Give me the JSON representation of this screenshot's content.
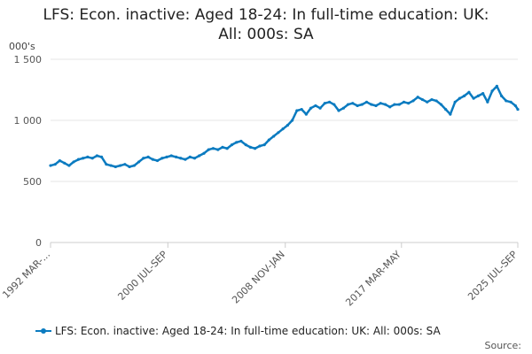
{
  "chart_data": {
    "type": "line",
    "title_lines": [
      "LFS: Econ. inactive: Aged 18-24: In full-time education: UK:",
      "All: 000s: SA"
    ],
    "ylabel": "000's",
    "ylim": [
      0,
      1500
    ],
    "y_ticks": [
      0,
      500,
      1000,
      1500
    ],
    "y_tick_labels": [
      "0",
      "500",
      "1 000",
      "1 500"
    ],
    "x_tick_labels": [
      "1992 MAR-...",
      "2000 JUL-SEP",
      "2008 NOV-JAN",
      "2017 MAR-MAY",
      "2025 JUL-SEP"
    ],
    "x_tick_years": [
      1992.17,
      2000.58,
      2009.0,
      2017.33,
      2025.67
    ],
    "xlim": [
      1992.17,
      2025.67
    ],
    "grid": "horizontal",
    "legend_position": "bottom",
    "color": "#0b7bc0",
    "series": [
      {
        "name": "LFS: Econ. inactive: Aged 18-24: In full-time education: UK: All: 000s: SA",
        "x": [
          1992.17,
          1992.5,
          1992.83,
          1993.17,
          1993.5,
          1993.83,
          1994.17,
          1994.5,
          1994.83,
          1995.17,
          1995.5,
          1995.83,
          1996.17,
          1996.5,
          1996.83,
          1997.17,
          1997.5,
          1997.83,
          1998.17,
          1998.5,
          1998.83,
          1999.17,
          1999.5,
          1999.83,
          2000.17,
          2000.5,
          2000.83,
          2001.17,
          2001.5,
          2001.83,
          2002.17,
          2002.5,
          2002.83,
          2003.17,
          2003.5,
          2003.83,
          2004.17,
          2004.5,
          2004.83,
          2005.17,
          2005.5,
          2005.83,
          2006.17,
          2006.5,
          2006.83,
          2007.17,
          2007.5,
          2007.83,
          2008.17,
          2008.5,
          2008.83,
          2009.17,
          2009.5,
          2009.83,
          2010.17,
          2010.5,
          2010.83,
          2011.17,
          2011.5,
          2011.83,
          2012.17,
          2012.5,
          2012.83,
          2013.17,
          2013.5,
          2013.83,
          2014.17,
          2014.5,
          2014.83,
          2015.17,
          2015.5,
          2015.83,
          2016.17,
          2016.5,
          2016.83,
          2017.17,
          2017.5,
          2017.83,
          2018.17,
          2018.5,
          2018.83,
          2019.17,
          2019.5,
          2019.83,
          2020.17,
          2020.5,
          2020.83,
          2021.17,
          2021.5,
          2021.83,
          2022.17,
          2022.5,
          2022.83,
          2023.17,
          2023.5,
          2023.83,
          2024.17,
          2024.5,
          2024.83,
          2025.17,
          2025.5,
          2025.67
        ],
        "values": [
          630,
          640,
          670,
          650,
          630,
          660,
          680,
          690,
          700,
          690,
          710,
          700,
          640,
          630,
          620,
          630,
          640,
          620,
          630,
          660,
          690,
          700,
          680,
          670,
          690,
          700,
          710,
          700,
          690,
          680,
          700,
          690,
          710,
          730,
          760,
          770,
          760,
          780,
          770,
          800,
          820,
          830,
          800,
          780,
          770,
          790,
          800,
          840,
          870,
          900,
          930,
          960,
          1000,
          1080,
          1090,
          1050,
          1100,
          1120,
          1100,
          1140,
          1150,
          1130,
          1080,
          1100,
          1130,
          1140,
          1120,
          1130,
          1150,
          1130,
          1120,
          1140,
          1130,
          1110,
          1130,
          1130,
          1150,
          1140,
          1160,
          1190,
          1170,
          1150,
          1170,
          1160,
          1130,
          1090,
          1050,
          1150,
          1180,
          1200,
          1230,
          1180,
          1200,
          1220,
          1150,
          1240,
          1280,
          1200,
          1160,
          1150,
          1120,
          1090
        ]
      }
    ]
  },
  "legend": {
    "label": "LFS: Econ. inactive: Aged 18-24: In full-time education: UK: All: 000s: SA"
  },
  "source_label": "Source:"
}
